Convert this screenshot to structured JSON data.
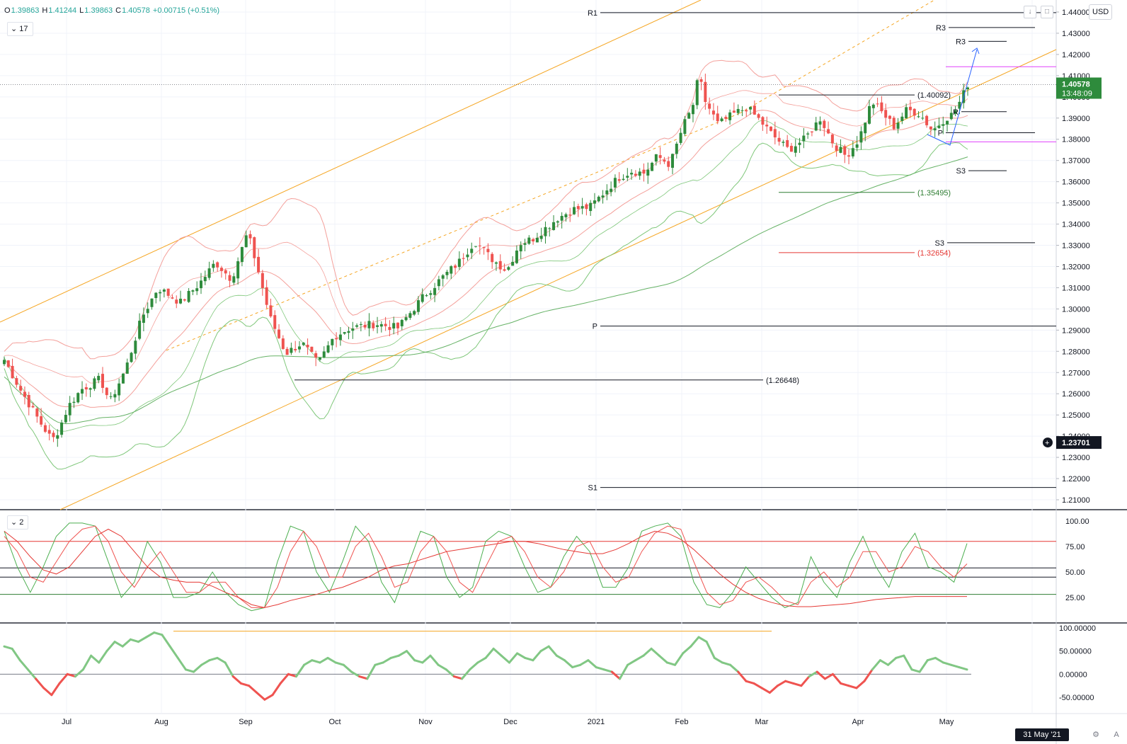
{
  "header": {
    "open_label": "O",
    "open": "1.39863",
    "high_label": "H",
    "high": "1.41244",
    "low_label": "L",
    "low": "1.39863",
    "close_label": "C",
    "close": "1.40578",
    "change": "+0.00715 (+0.51%)",
    "indicator1": "17",
    "indicator2": "2",
    "currency": "USD",
    "date_badge": "31 May '21",
    "auto_label": "A"
  },
  "colors": {
    "up": "#26a69a",
    "candle_up": "#2e8b3c",
    "candle_down": "#ef5350",
    "bb_red": "#f4a09b",
    "bb_green": "#7fc77a",
    "ma_green": "#66b266",
    "channel": "#f5a623",
    "pivot_line": "#131722",
    "magenta": "#e040fb",
    "trend_blue": "#2962ff",
    "price_badge": "#2e8b3c",
    "dark_badge": "#131722"
  },
  "chart_data": [
    {
      "type": "candlestick",
      "x_labels": [
        "Jul",
        "Aug",
        "Sep",
        "Oct",
        "Nov",
        "Dec",
        "2021",
        "Feb",
        "Mar",
        "Apr",
        "May"
      ],
      "y_ticks": [
        "1.44000",
        "1.43000",
        "1.42000",
        "1.41000",
        "1.40000",
        "1.39000",
        "1.38000",
        "1.37000",
        "1.36000",
        "1.35000",
        "1.34000",
        "1.33000",
        "1.32000",
        "1.31000",
        "1.30000",
        "1.29000",
        "1.28000",
        "1.27000",
        "1.26000",
        "1.25000",
        "1.24000",
        "1.23000",
        "1.22000",
        "1.21000"
      ],
      "ylim": [
        1.205,
        1.445
      ],
      "last_price": "1.40578",
      "countdown": "13:48:09",
      "crosshair_price": "1.23701",
      "pivot_labels": [
        {
          "label": "R1",
          "price": 1.4397
        },
        {
          "label": "R3",
          "price": 1.4327
        },
        {
          "label": "R3",
          "price": 1.4262
        },
        {
          "label": "P",
          "price": 1.2919
        },
        {
          "label": "S1",
          "price": 1.2158
        },
        {
          "label": "P",
          "price": 1.3831
        },
        {
          "label": "S3",
          "price": 1.3652
        },
        {
          "label": "S3",
          "price": 1.3312
        },
        {
          "label": "R",
          "price": 1.393
        }
      ],
      "price_annotations": [
        "(1.40092)",
        "(1.35495)",
        "(1.32654)",
        "(1.26648)"
      ],
      "annotation_values": [
        1.40092,
        1.35495,
        1.32654,
        1.26648
      ],
      "magenta_levels": [
        1.4142,
        1.3788
      ],
      "path": [
        [
          0,
          1.276
        ],
        [
          10,
          1.262
        ],
        [
          22,
          1.247
        ],
        [
          30,
          1.238
        ],
        [
          34,
          1.243
        ],
        [
          40,
          1.254
        ],
        [
          48,
          1.262
        ],
        [
          60,
          1.267
        ],
        [
          66,
          1.256
        ],
        [
          76,
          1.272
        ],
        [
          86,
          1.296
        ],
        [
          96,
          1.31
        ],
        [
          110,
          1.303
        ],
        [
          122,
          1.312
        ],
        [
          132,
          1.322
        ],
        [
          142,
          1.314
        ],
        [
          152,
          1.336
        ],
        [
          158,
          1.32
        ],
        [
          166,
          1.296
        ],
        [
          176,
          1.279
        ],
        [
          186,
          1.284
        ],
        [
          196,
          1.274
        ],
        [
          206,
          1.287
        ],
        [
          216,
          1.291
        ],
        [
          232,
          1.293
        ],
        [
          246,
          1.291
        ],
        [
          262,
          1.306
        ],
        [
          274,
          1.315
        ],
        [
          284,
          1.322
        ],
        [
          294,
          1.332
        ],
        [
          304,
          1.324
        ],
        [
          314,
          1.318
        ],
        [
          322,
          1.331
        ],
        [
          330,
          1.333
        ],
        [
          338,
          1.338
        ],
        [
          346,
          1.343
        ],
        [
          356,
          1.347
        ],
        [
          366,
          1.348
        ],
        [
          376,
          1.356
        ],
        [
          384,
          1.362
        ],
        [
          392,
          1.365
        ],
        [
          400,
          1.364
        ],
        [
          408,
          1.372
        ],
        [
          416,
          1.368
        ],
        [
          424,
          1.386
        ],
        [
          430,
          1.395
        ],
        [
          434,
          1.41
        ],
        [
          438,
          1.398
        ],
        [
          446,
          1.387
        ],
        [
          456,
          1.392
        ],
        [
          464,
          1.395
        ],
        [
          472,
          1.389
        ],
        [
          480,
          1.382
        ],
        [
          490,
          1.375
        ],
        [
          500,
          1.38
        ],
        [
          510,
          1.39
        ],
        [
          518,
          1.378
        ],
        [
          526,
          1.372
        ],
        [
          534,
          1.38
        ],
        [
          542,
          1.398
        ],
        [
          548,
          1.393
        ],
        [
          556,
          1.386
        ],
        [
          564,
          1.394
        ],
        [
          572,
          1.392
        ],
        [
          580,
          1.384
        ],
        [
          588,
          1.39
        ],
        [
          593,
          1.392
        ],
        [
          598,
          1.399
        ],
        [
          602,
          1.406
        ]
      ]
    },
    {
      "type": "line",
      "name_hint": "stochastic",
      "y_ticks": [
        "100.00",
        "75.00",
        "50.00",
        "25.00"
      ],
      "ylim": [
        0,
        110
      ],
      "levels": [
        80,
        54,
        45,
        28
      ],
      "series": [
        {
          "values": [
            90,
            55,
            30,
            55,
            85,
            98,
            98,
            95,
            60,
            25,
            40,
            80,
            60,
            25,
            25,
            30,
            50,
            30,
            18,
            12,
            15,
            60,
            95,
            90,
            50,
            30,
            60,
            95,
            80,
            40,
            20,
            55,
            90,
            85,
            45,
            25,
            35,
            80,
            90,
            85,
            55,
            30,
            35,
            65,
            85,
            70,
            35,
            35,
            55,
            90,
            95,
            98,
            85,
            40,
            18,
            15,
            30,
            55,
            40,
            25,
            15,
            20,
            65,
            40,
            25,
            60,
            85,
            55,
            35,
            70,
            88,
            55,
            50,
            40,
            78
          ]
        },
        {
          "values": [
            85,
            70,
            45,
            40,
            60,
            80,
            92,
            95,
            80,
            50,
            35,
            55,
            70,
            50,
            30,
            30,
            40,
            40,
            25,
            15,
            15,
            35,
            70,
            90,
            75,
            45,
            45,
            75,
            88,
            65,
            35,
            40,
            70,
            85,
            70,
            40,
            30,
            55,
            80,
            85,
            70,
            45,
            35,
            50,
            75,
            80,
            55,
            40,
            45,
            70,
            88,
            95,
            92,
            60,
            30,
            18,
            22,
            40,
            45,
            35,
            22,
            18,
            40,
            50,
            35,
            45,
            70,
            70,
            50,
            55,
            75,
            70,
            55,
            45,
            58
          ]
        },
        {
          "values": [
            90,
            80,
            65,
            52,
            48,
            55,
            70,
            85,
            92,
            85,
            70,
            55,
            45,
            42,
            40,
            40,
            36,
            30,
            25,
            18,
            15,
            18,
            22,
            25,
            28,
            32,
            35,
            40,
            45,
            52,
            56,
            58,
            62,
            66,
            70,
            72,
            74,
            76,
            78,
            80,
            80,
            78,
            75,
            72,
            70,
            68,
            68,
            72,
            78,
            85,
            90,
            88,
            82,
            72,
            60,
            48,
            38,
            30,
            24,
            20,
            17,
            16,
            16,
            17,
            18,
            19,
            21,
            23,
            24,
            25,
            26,
            26,
            26,
            26,
            26
          ]
        }
      ]
    },
    {
      "type": "line",
      "name_hint": "momentum",
      "y_ticks": [
        "100.00000",
        "50.00000",
        "0.00000",
        "-50.00000"
      ],
      "ylim": [
        -65,
        105
      ],
      "zero_line": 0,
      "series": [
        {
          "values": [
            60,
            55,
            30,
            10,
            -10,
            -30,
            -45,
            -20,
            0,
            -5,
            10,
            40,
            25,
            50,
            70,
            60,
            75,
            70,
            80,
            90,
            85,
            60,
            35,
            10,
            5,
            20,
            30,
            35,
            25,
            -5,
            -20,
            -25,
            -40,
            -55,
            -45,
            -20,
            0,
            -5,
            20,
            30,
            25,
            35,
            25,
            20,
            5,
            -5,
            -10,
            20,
            25,
            35,
            40,
            50,
            30,
            25,
            40,
            20,
            10,
            -5,
            -10,
            10,
            25,
            35,
            55,
            40,
            25,
            45,
            35,
            30,
            50,
            60,
            40,
            30,
            15,
            20,
            30,
            15,
            10,
            5,
            -10,
            20,
            30,
            40,
            55,
            40,
            25,
            20,
            45,
            60,
            80,
            70,
            35,
            25,
            20,
            5,
            -15,
            -20,
            -30,
            -40,
            -25,
            -15,
            -20,
            -25,
            -5,
            5,
            -10,
            0,
            -20,
            -25,
            -30,
            -15,
            10,
            30,
            20,
            35,
            40,
            10,
            5,
            30,
            35,
            25,
            20,
            15,
            10
          ]
        }
      ],
      "reference_line_value": 93
    }
  ]
}
